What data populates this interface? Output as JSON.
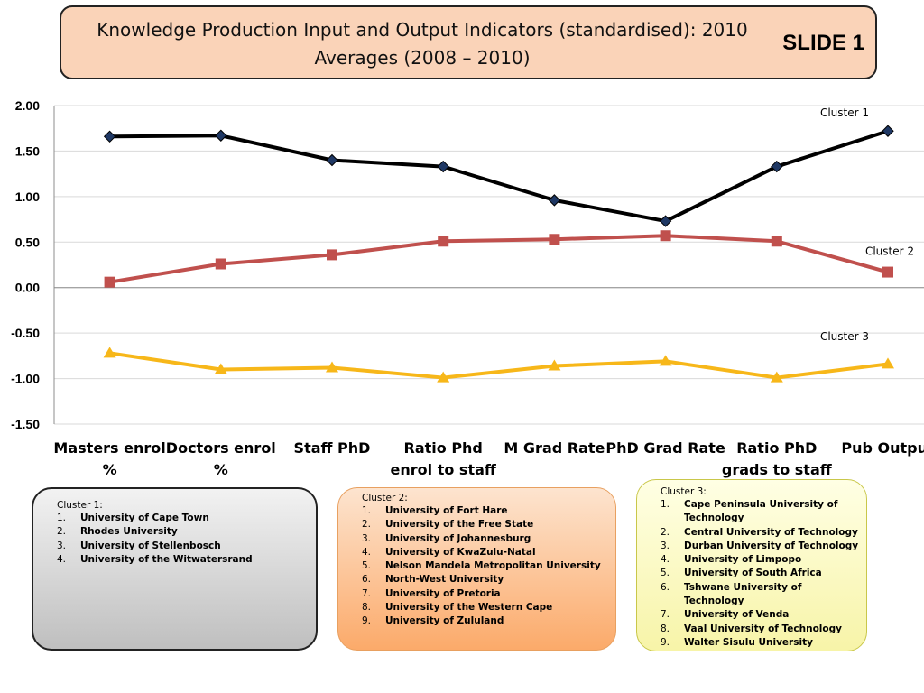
{
  "slide": {
    "title": "Knowledge Production  Input and Output Indicators (standardised): 2010 Averages (2008 – 2010)",
    "label": "SLIDE 1"
  },
  "chart_data": {
    "type": "line",
    "categories": [
      "Masters enrol %",
      "Doctors enrol %",
      "Staff PhD",
      "Ratio Phd enrol to staff",
      "M Grad Rate",
      "PhD Grad Rate",
      "Ratio PhD grads to staff",
      "Pub Output"
    ],
    "ylim": [
      -1.5,
      2.0
    ],
    "yticks": [
      "2.00",
      "1.50",
      "1.00",
      "0.50",
      "0.00",
      "-0.50",
      "-1.00",
      "-1.50"
    ],
    "grid": true,
    "series": [
      {
        "name": "Cluster 1",
        "color": "#000000",
        "marker": "diamond",
        "marker_fill": "#1f3864",
        "values": [
          1.66,
          1.67,
          1.4,
          1.33,
          0.96,
          0.73,
          1.33,
          1.72
        ]
      },
      {
        "name": "Cluster 2",
        "color": "#c0504d",
        "marker": "square",
        "marker_fill": "#c0504d",
        "values": [
          0.06,
          0.26,
          0.36,
          0.51,
          0.53,
          0.57,
          0.51,
          0.17
        ]
      },
      {
        "name": "Cluster 3",
        "color": "#f7b719",
        "marker": "triangle",
        "marker_fill": "#f7b719",
        "values": [
          -0.72,
          -0.9,
          -0.88,
          -0.99,
          -0.86,
          -0.81,
          -0.99,
          -0.84
        ]
      }
    ]
  },
  "clusters": [
    {
      "title": "Cluster 1:",
      "members": [
        "University of Cape Town",
        "Rhodes University",
        "University of Stellenbosch",
        "University of the Witwatersrand"
      ]
    },
    {
      "title": "Cluster 2:",
      "members": [
        "University of Fort Hare",
        "University  of the Free State",
        "University of Johannesburg",
        "University of KwaZulu-Natal",
        "Nelson Mandela Metropolitan University",
        "North-West University",
        "University of Pretoria",
        "University of the Western Cape",
        "University of Zululand"
      ]
    },
    {
      "title": "Cluster 3:",
      "members": [
        "Cape Peninsula University of Technology",
        "Central University of Technology",
        "Durban University of Technology",
        "University of Limpopo",
        "University of South Africa",
        "Tshwane University of Technology",
        "University of Venda",
        "Vaal University of Technology",
        "Walter Sisulu University"
      ]
    }
  ]
}
